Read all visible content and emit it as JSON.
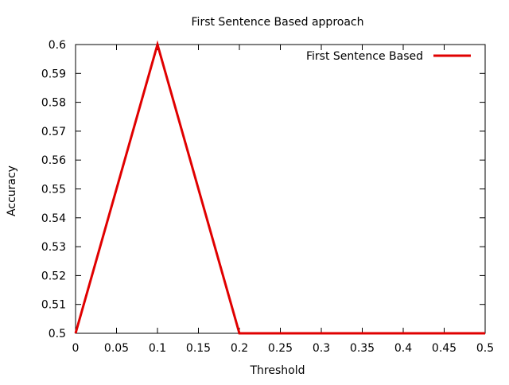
{
  "chart_data": {
    "type": "line",
    "title": "First Sentence Based approach",
    "xlabel": "Threshold",
    "ylabel": "Accuracy",
    "xlim": [
      0,
      0.5
    ],
    "ylim": [
      0.5,
      0.6
    ],
    "x_ticks": [
      "0",
      "0.05",
      "0.1",
      "0.15",
      "0.2",
      "0.25",
      "0.3",
      "0.35",
      "0.4",
      "0.45",
      "0.5"
    ],
    "y_ticks": [
      "0.5",
      "0.51",
      "0.52",
      "0.53",
      "0.54",
      "0.55",
      "0.56",
      "0.57",
      "0.58",
      "0.59",
      "0.6"
    ],
    "grid": false,
    "legend_position": "top-right",
    "series": [
      {
        "name": "First Sentence Based",
        "color": "#e00000",
        "x": [
          0,
          0.1,
          0.2,
          0.3,
          0.4,
          0.5
        ],
        "y": [
          0.5,
          0.6,
          0.5,
          0.5,
          0.5,
          0.5
        ]
      }
    ]
  }
}
